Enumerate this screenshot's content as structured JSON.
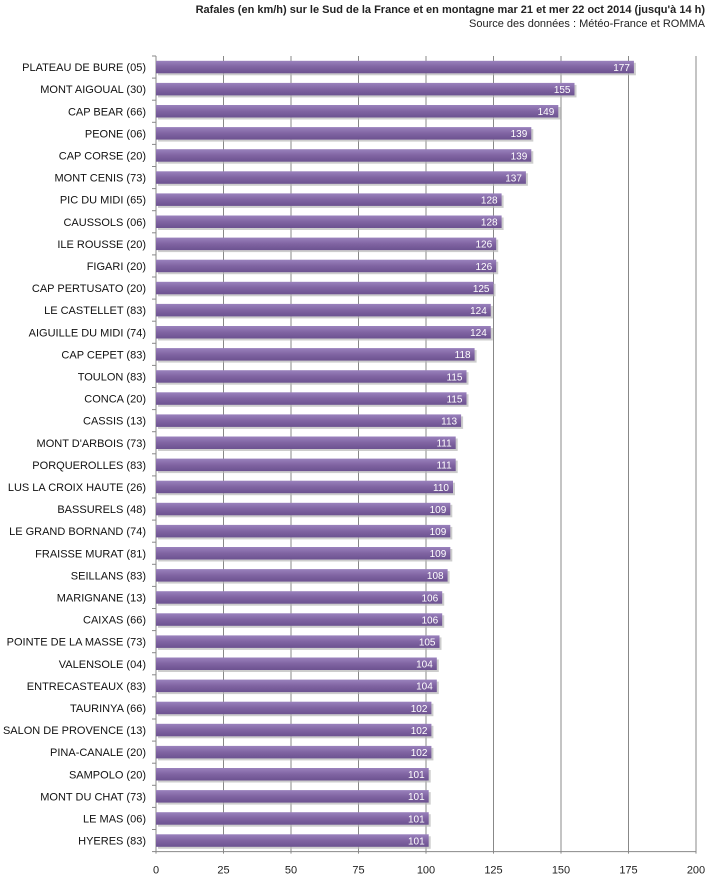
{
  "chart_data": {
    "type": "bar",
    "orientation": "horizontal",
    "title": "Rafales  (en km/h) sur le Sud de la France et en montagne mar 21 et mer 22 oct 2014  (jusqu'à 14 h)",
    "subtitle": "Source des données : Météo-France et ROMMA",
    "xlabel": "",
    "ylabel": "",
    "xlim": [
      0,
      200
    ],
    "xticks": [
      0,
      25,
      50,
      75,
      100,
      125,
      150,
      175,
      200
    ],
    "grid": true,
    "legend": "none",
    "bar_color": "#8064a2",
    "categories": [
      "PLATEAU DE BURE (05)",
      "MONT AIGOUAL (30)",
      "CAP BEAR (66)",
      "PEONE (06)",
      "CAP CORSE (20)",
      "MONT CENIS (73)",
      "PIC DU MIDI (65)",
      "CAUSSOLS (06)",
      "ILE ROUSSE (20)",
      "FIGARI (20)",
      "CAP PERTUSATO (20)",
      "LE CASTELLET (83)",
      "AIGUILLE DU MIDI (74)",
      "CAP CEPET (83)",
      "TOULON (83)",
      "CONCA (20)",
      "CASSIS (13)",
      "MONT D'ARBOIS (73)",
      "PORQUEROLLES (83)",
      "LUS LA CROIX HAUTE (26)",
      "BASSURELS (48)",
      "LE GRAND BORNAND (74)",
      "FRAISSE MURAT (81)",
      "SEILLANS (83)",
      "MARIGNANE (13)",
      "CAIXAS (66)",
      "POINTE DE LA MASSE (73)",
      "VALENSOLE (04)",
      "ENTRECASTEAUX (83)",
      "TAURINYA (66)",
      "SALON DE PROVENCE (13)",
      "PINA-CANALE (20)",
      "SAMPOLO (20)",
      "MONT DU CHAT (73)",
      "LE MAS (06)",
      "HYERES (83)"
    ],
    "values": [
      177,
      155,
      149,
      139,
      139,
      137,
      128,
      128,
      126,
      126,
      125,
      124,
      124,
      118,
      115,
      115,
      113,
      111,
      111,
      110,
      109,
      109,
      109,
      108,
      106,
      106,
      105,
      104,
      104,
      102,
      102,
      102,
      101,
      101,
      101,
      101
    ]
  }
}
